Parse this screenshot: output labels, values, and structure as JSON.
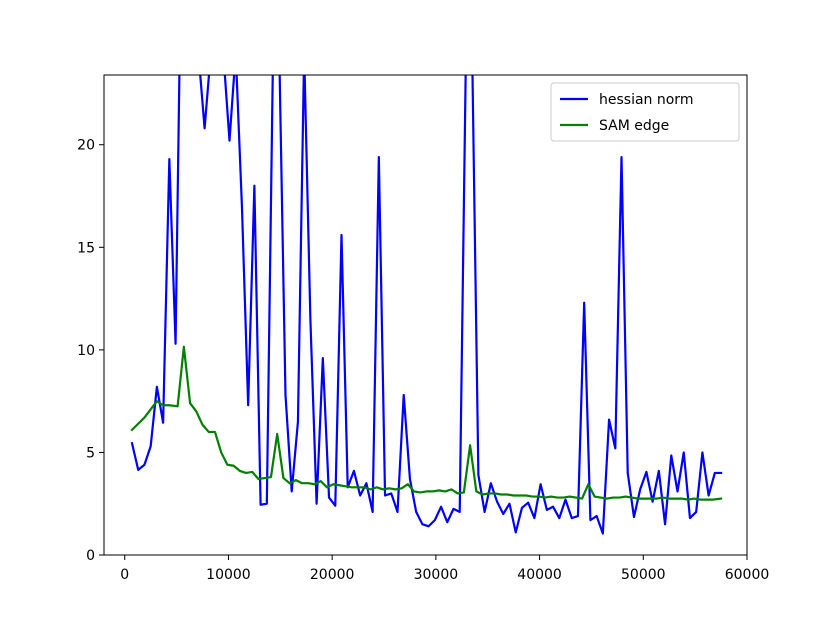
{
  "chart_data": {
    "type": "line",
    "title": "",
    "xlabel": "",
    "ylabel": "",
    "xlim": [
      -2000,
      60000
    ],
    "ylim": [
      0,
      23.4
    ],
    "grid": false,
    "legend_position": "top-right",
    "xticks": [
      0,
      10000,
      20000,
      30000,
      40000,
      50000,
      60000
    ],
    "xtick_labels": [
      "0",
      "10000",
      "20000",
      "30000",
      "40000",
      "50000",
      "60000"
    ],
    "yticks": [
      0,
      5,
      10,
      15,
      20
    ],
    "ytick_labels": [
      "0",
      "5",
      "10",
      "15",
      "20"
    ],
    "series": [
      {
        "name": "hessian norm",
        "color": "#0000ff",
        "x": [
          700,
          1300,
          1900,
          2500,
          3100,
          3700,
          4300,
          4900,
          5300,
          5900,
          6500,
          7100,
          7700,
          8300,
          8900,
          9500,
          10100,
          10700,
          11300,
          11900,
          12500,
          13100,
          13700,
          14300,
          14900,
          15500,
          16100,
          16700,
          17300,
          17900,
          18500,
          19100,
          19700,
          20300,
          20900,
          21500,
          22100,
          22700,
          23300,
          23900,
          24500,
          25100,
          25700,
          26300,
          26900,
          27500,
          28100,
          28700,
          29300,
          29900,
          30500,
          31100,
          31700,
          32300,
          32900,
          33500,
          34100,
          34700,
          35300,
          35900,
          36500,
          37100,
          37700,
          38300,
          38900,
          39500,
          40100,
          40700,
          41300,
          41900,
          42500,
          43100,
          43700,
          44300,
          44900,
          45500,
          46100,
          46700,
          47300,
          47900,
          48500,
          49100,
          49700,
          50300,
          50900,
          51500,
          52100,
          52700,
          53300,
          53900,
          54500,
          55100,
          55700,
          56300,
          56900,
          57500
        ],
        "y": [
          5.45,
          4.15,
          4.4,
          5.3,
          8.2,
          6.45,
          19.3,
          10.3,
          24.5,
          24.5,
          24.5,
          24.5,
          20.8,
          24.5,
          24.5,
          24.5,
          20.2,
          24.5,
          17.0,
          7.3,
          18.0,
          2.45,
          2.5,
          24.5,
          24.5,
          7.8,
          3.1,
          6.5,
          24.5,
          11.5,
          2.5,
          9.6,
          2.8,
          2.4,
          15.6,
          3.3,
          4.1,
          2.9,
          3.5,
          2.1,
          19.4,
          2.9,
          3.0,
          2.1,
          7.8,
          3.7,
          2.1,
          1.5,
          1.4,
          1.7,
          2.35,
          1.6,
          2.25,
          2.1,
          24.5,
          24.5,
          3.9,
          2.1,
          3.5,
          2.6,
          2.0,
          2.5,
          1.1,
          2.3,
          2.55,
          1.8,
          3.45,
          2.2,
          2.35,
          1.8,
          2.7,
          1.8,
          1.9,
          12.3,
          1.7,
          1.9,
          1.05,
          6.6,
          5.2,
          19.4,
          4.0,
          1.85,
          3.2,
          4.05,
          2.6,
          4.1,
          1.5,
          4.85,
          3.1,
          5.0,
          1.8,
          2.1,
          5.0,
          2.9,
          4.0,
          4.0
        ]
      },
      {
        "name": "SAM edge",
        "color": "#008000",
        "x": [
          700,
          1900,
          3100,
          3700,
          4300,
          5100,
          5700,
          6300,
          6900,
          7500,
          8100,
          8700,
          9300,
          9900,
          10500,
          11100,
          11700,
          12300,
          12900,
          13500,
          14100,
          14700,
          15300,
          15900,
          16500,
          17100,
          17700,
          18300,
          18900,
          19500,
          20100,
          20700,
          21300,
          21900,
          22500,
          23100,
          23700,
          24300,
          24900,
          25500,
          26100,
          26700,
          27300,
          27900,
          28500,
          29100,
          29700,
          30300,
          30900,
          31500,
          32100,
          32700,
          33300,
          33900,
          34500,
          35100,
          35700,
          36300,
          36900,
          37500,
          38100,
          38700,
          39300,
          39900,
          40500,
          41100,
          41700,
          42300,
          42900,
          43500,
          44100,
          44700,
          45300,
          45900,
          46500,
          47100,
          47700,
          48300,
          48900,
          49500,
          50100,
          50700,
          51300,
          51900,
          52500,
          53100,
          53700,
          54300,
          54900,
          55500,
          56100,
          56700,
          57500
        ],
        "y": [
          6.1,
          6.7,
          7.5,
          7.3,
          7.3,
          7.25,
          10.15,
          7.4,
          7.0,
          6.35,
          6.0,
          6.0,
          5.0,
          4.4,
          4.35,
          4.1,
          4.0,
          4.05,
          3.7,
          3.75,
          3.8,
          5.9,
          3.75,
          3.5,
          3.65,
          3.5,
          3.5,
          3.45,
          3.6,
          3.3,
          3.45,
          3.4,
          3.35,
          3.3,
          3.3,
          3.3,
          3.2,
          3.3,
          3.2,
          3.25,
          3.2,
          3.25,
          3.45,
          3.1,
          3.05,
          3.1,
          3.1,
          3.15,
          3.1,
          3.2,
          3.0,
          3.05,
          5.35,
          3.1,
          2.95,
          3.0,
          3.0,
          2.95,
          2.95,
          2.9,
          2.9,
          2.9,
          2.85,
          2.85,
          2.8,
          2.85,
          2.8,
          2.8,
          2.85,
          2.8,
          2.75,
          3.45,
          2.85,
          2.8,
          2.75,
          2.8,
          2.8,
          2.85,
          2.8,
          2.75,
          2.75,
          2.75,
          2.75,
          2.8,
          2.75,
          2.75,
          2.75,
          2.7,
          2.75,
          2.7,
          2.7,
          2.7,
          2.75
        ]
      }
    ]
  }
}
